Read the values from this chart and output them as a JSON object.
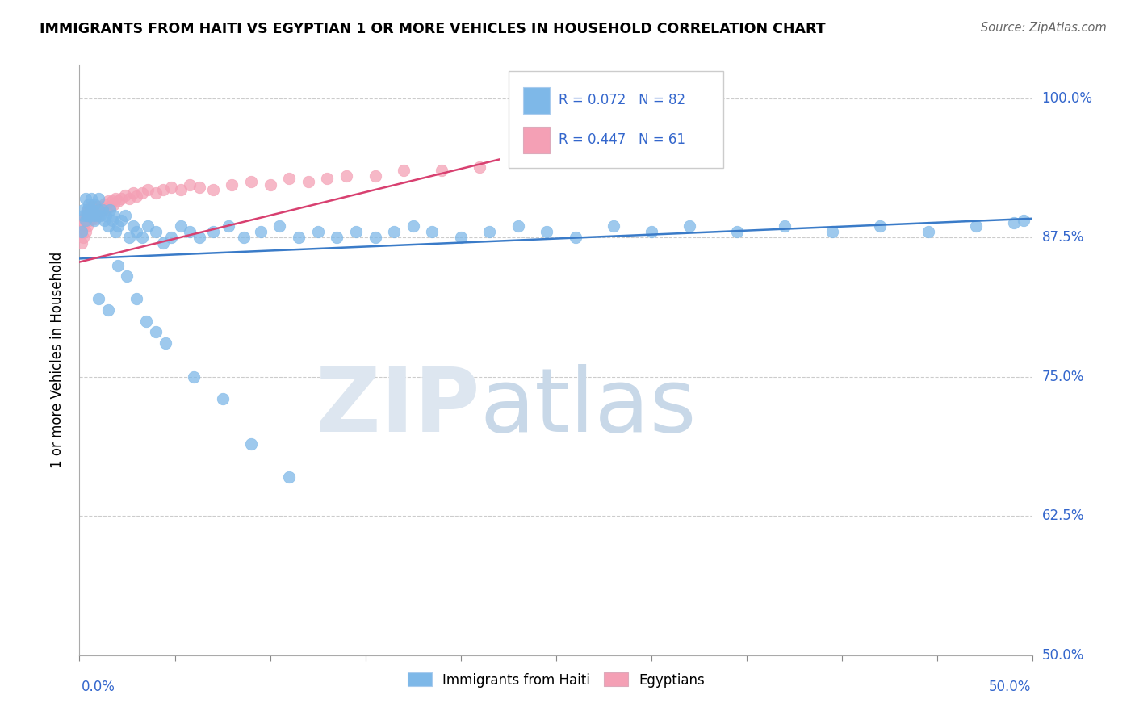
{
  "title": "IMMIGRANTS FROM HAITI VS EGYPTIAN 1 OR MORE VEHICLES IN HOUSEHOLD CORRELATION CHART",
  "source": "Source: ZipAtlas.com",
  "ylabel_label": "1 or more Vehicles in Household",
  "legend_haiti_r": "R = 0.072",
  "legend_haiti_n": "N = 82",
  "legend_egypt_r": "R = 0.447",
  "legend_egypt_n": "N = 61",
  "haiti_color": "#7EB8E8",
  "egypt_color": "#F4A0B5",
  "haiti_line_color": "#3A7BC8",
  "egypt_line_color": "#D84070",
  "haiti_x": [
    0.001,
    0.002,
    0.002,
    0.003,
    0.003,
    0.004,
    0.004,
    0.005,
    0.005,
    0.006,
    0.006,
    0.007,
    0.007,
    0.008,
    0.008,
    0.009,
    0.01,
    0.01,
    0.011,
    0.012,
    0.013,
    0.014,
    0.015,
    0.016,
    0.017,
    0.018,
    0.019,
    0.02,
    0.022,
    0.024,
    0.026,
    0.028,
    0.03,
    0.033,
    0.036,
    0.04,
    0.044,
    0.048,
    0.053,
    0.058,
    0.063,
    0.07,
    0.078,
    0.086,
    0.095,
    0.105,
    0.115,
    0.125,
    0.135,
    0.145,
    0.155,
    0.165,
    0.175,
    0.185,
    0.2,
    0.215,
    0.23,
    0.245,
    0.26,
    0.28,
    0.3,
    0.32,
    0.345,
    0.37,
    0.395,
    0.42,
    0.445,
    0.47,
    0.49,
    0.495,
    0.01,
    0.015,
    0.02,
    0.025,
    0.03,
    0.035,
    0.04,
    0.045,
    0.06,
    0.075,
    0.09,
    0.11
  ],
  "haiti_y": [
    0.88,
    0.895,
    0.9,
    0.91,
    0.89,
    0.895,
    0.9,
    0.905,
    0.895,
    0.9,
    0.91,
    0.9,
    0.895,
    0.905,
    0.89,
    0.895,
    0.9,
    0.91,
    0.895,
    0.9,
    0.89,
    0.895,
    0.885,
    0.9,
    0.89,
    0.895,
    0.88,
    0.885,
    0.89,
    0.895,
    0.875,
    0.885,
    0.88,
    0.875,
    0.885,
    0.88,
    0.87,
    0.875,
    0.885,
    0.88,
    0.875,
    0.88,
    0.885,
    0.875,
    0.88,
    0.885,
    0.875,
    0.88,
    0.875,
    0.88,
    0.875,
    0.88,
    0.885,
    0.88,
    0.875,
    0.88,
    0.885,
    0.88,
    0.875,
    0.885,
    0.88,
    0.885,
    0.88,
    0.885,
    0.88,
    0.885,
    0.88,
    0.885,
    0.888,
    0.89,
    0.82,
    0.81,
    0.85,
    0.84,
    0.82,
    0.8,
    0.79,
    0.78,
    0.75,
    0.73,
    0.69,
    0.66
  ],
  "egypt_x": [
    0.001,
    0.001,
    0.002,
    0.002,
    0.002,
    0.003,
    0.003,
    0.003,
    0.004,
    0.004,
    0.004,
    0.005,
    0.005,
    0.005,
    0.006,
    0.006,
    0.006,
    0.007,
    0.007,
    0.008,
    0.008,
    0.008,
    0.009,
    0.009,
    0.01,
    0.01,
    0.011,
    0.012,
    0.013,
    0.014,
    0.015,
    0.016,
    0.017,
    0.018,
    0.019,
    0.02,
    0.022,
    0.024,
    0.026,
    0.028,
    0.03,
    0.033,
    0.036,
    0.04,
    0.044,
    0.048,
    0.053,
    0.058,
    0.063,
    0.07,
    0.08,
    0.09,
    0.1,
    0.11,
    0.12,
    0.13,
    0.14,
    0.155,
    0.17,
    0.19,
    0.21
  ],
  "egypt_y": [
    0.87,
    0.88,
    0.875,
    0.885,
    0.89,
    0.88,
    0.89,
    0.895,
    0.885,
    0.892,
    0.898,
    0.89,
    0.895,
    0.9,
    0.892,
    0.898,
    0.903,
    0.895,
    0.9,
    0.892,
    0.898,
    0.903,
    0.898,
    0.903,
    0.895,
    0.9,
    0.903,
    0.9,
    0.905,
    0.9,
    0.908,
    0.903,
    0.908,
    0.905,
    0.91,
    0.908,
    0.91,
    0.913,
    0.91,
    0.915,
    0.912,
    0.915,
    0.918,
    0.915,
    0.918,
    0.92,
    0.918,
    0.922,
    0.92,
    0.918,
    0.922,
    0.925,
    0.922,
    0.928,
    0.925,
    0.928,
    0.93,
    0.93,
    0.935,
    0.935,
    0.938
  ],
  "xlim": [
    0.0,
    0.5
  ],
  "ylim": [
    0.5,
    1.03
  ],
  "yticks": [
    0.5,
    0.625,
    0.75,
    0.875,
    1.0
  ],
  "ytick_labels": [
    "50.0%",
    "62.5%",
    "75.0%",
    "87.5%",
    "100.0%"
  ],
  "haiti_trend_x": [
    0.0,
    0.5
  ],
  "haiti_trend_y": [
    0.856,
    0.892
  ],
  "egypt_trend_x": [
    0.0,
    0.22
  ],
  "egypt_trend_y": [
    0.853,
    0.945
  ]
}
